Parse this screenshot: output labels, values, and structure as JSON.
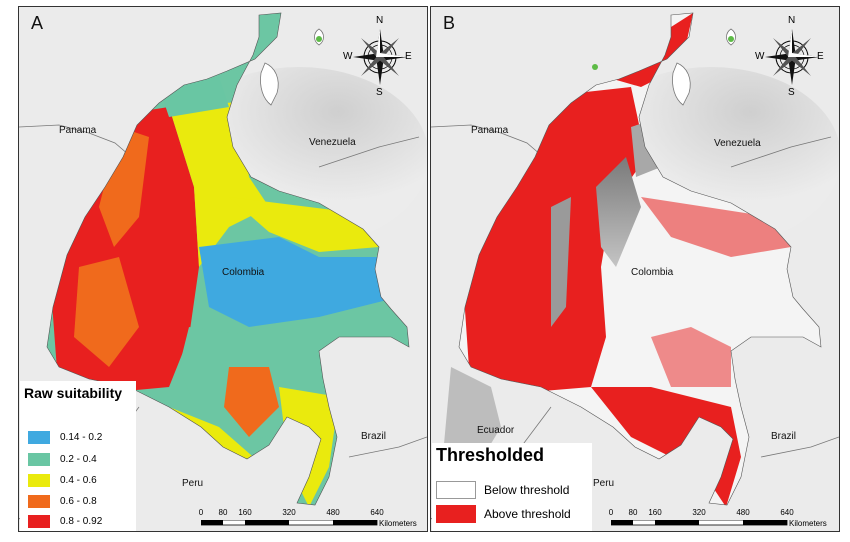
{
  "panels": {
    "a": {
      "letter": "A",
      "places": {
        "panama": "Panama",
        "venezuela": "Venezuela",
        "colombia": "Colombia",
        "brazil": "Brazil",
        "peru": "Peru"
      },
      "legend": {
        "title": "Raw suitability",
        "items": [
          {
            "label": "0.14 - 0.2",
            "color": "#3fa9e0"
          },
          {
            "label": "0.2 - 0.4",
            "color": "#69c6a3"
          },
          {
            "label": "0.4 - 0.6",
            "color": "#eaea0d"
          },
          {
            "label": "0.6 - 0.8",
            "color": "#f06a1c"
          },
          {
            "label": "0.8 - 0.92",
            "color": "#e8201f"
          }
        ]
      }
    },
    "b": {
      "letter": "B",
      "places": {
        "panama": "Panama",
        "venezuela": "Venezuela",
        "colombia": "Colombia",
        "ecuador": "Ecuador",
        "brazil": "Brazil",
        "peru": "Peru"
      },
      "legend": {
        "title": "Thresholded",
        "items": [
          {
            "label": "Below threshold",
            "color": "#ffffff"
          },
          {
            "label": "Above threshold",
            "color": "#e8201f"
          }
        ]
      }
    }
  },
  "compass": {
    "n": "N",
    "s": "S",
    "e": "E",
    "w": "W"
  },
  "scale_bar": {
    "ticks": [
      "0",
      "80",
      "160",
      "320",
      "480",
      "640"
    ],
    "unit": "Kilometers"
  }
}
